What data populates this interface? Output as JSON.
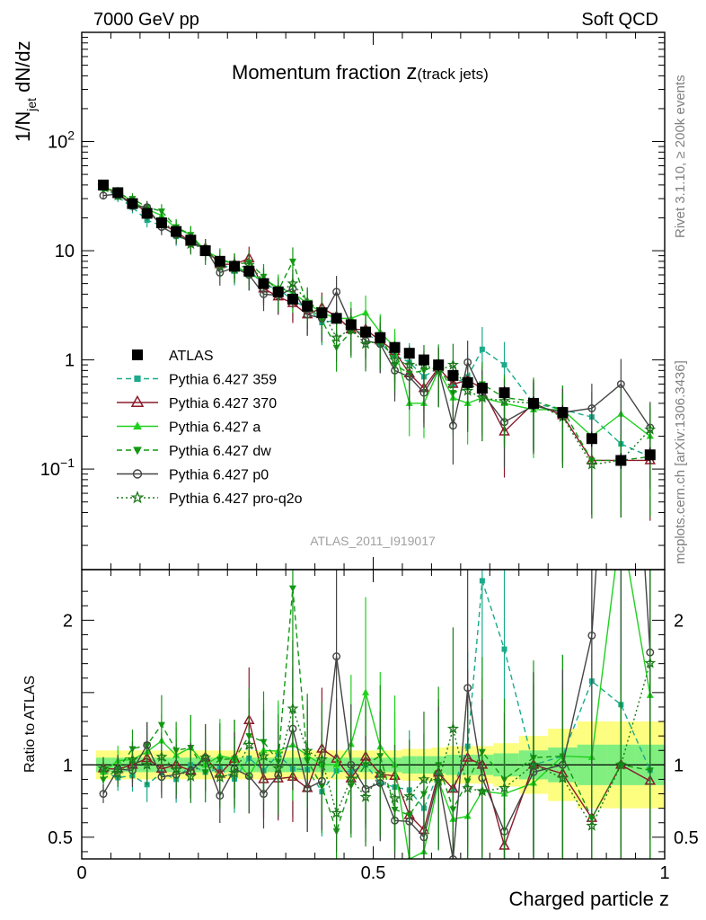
{
  "header": {
    "left": "7000 GeV pp",
    "right": "Soft QCD"
  },
  "side_labels": {
    "top": "Rivet 3.1.10, ≥ 200k events",
    "bottom": "mcplots.cern.ch [arXiv:1306.3436]"
  },
  "analysis_id": "ATLAS_2011_I919017",
  "colors": {
    "ATLAS": "#000000",
    "p359": "#1aab8a",
    "p370": "#8b1a2b",
    "pa": "#1fd11f",
    "pdw": "#119911",
    "pp0": "#444444",
    "pq2o": "#1b7a1b",
    "band_inner": "#80ef80",
    "band_outer": "#fdfd80"
  },
  "chart_data": [
    {
      "type": "scatter",
      "title_main": "Momentum fraction ",
      "title_var": "z",
      "title_sub": "(track jets)",
      "ylabel": "1/N",
      "ylabel_sub": "jet",
      "ylabel_tail": " dN/dz",
      "yscale": "log",
      "ylim": [
        0.012,
        1000
      ],
      "xlim": [
        0,
        1
      ],
      "yticks": [
        {
          "v": 100,
          "label": "10",
          "exp": "2"
        },
        {
          "v": 10,
          "label": "10",
          "exp": ""
        },
        {
          "v": 1,
          "label": "1",
          "exp": ""
        },
        {
          "v": 0.1,
          "label": "10",
          "exp": "−1"
        }
      ],
      "x": [
        0.037,
        0.062,
        0.087,
        0.112,
        0.137,
        0.162,
        0.187,
        0.212,
        0.237,
        0.262,
        0.287,
        0.312,
        0.337,
        0.362,
        0.387,
        0.412,
        0.437,
        0.462,
        0.487,
        0.512,
        0.537,
        0.562,
        0.587,
        0.612,
        0.637,
        0.662,
        0.687,
        0.725,
        0.775,
        0.825,
        0.875,
        0.925,
        0.975
      ],
      "series": [
        {
          "name": "ATLAS",
          "key": "ATLAS",
          "marker": "square",
          "dash": "none",
          "fill": true,
          "values": [
            40,
            34,
            27,
            22,
            18,
            15,
            12.5,
            10,
            8,
            7.2,
            6.5,
            5,
            4.2,
            3.6,
            3.1,
            2.7,
            2.4,
            2.1,
            1.8,
            1.6,
            1.3,
            1.15,
            1.0,
            0.9,
            0.72,
            0.62,
            0.55,
            0.5,
            0.4,
            0.33,
            0.19,
            0.12,
            0.135
          ]
        },
        {
          "name": "Pythia 6.427 359",
          "key": "p359",
          "marker": "square-small",
          "dash": "6,4",
          "fill": true,
          "values": [
            38,
            31,
            25,
            19,
            17,
            13.5,
            12.5,
            9.5,
            7.8,
            6.5,
            6.8,
            4.8,
            4.5,
            3.5,
            3.0,
            2.2,
            2.3,
            2.0,
            1.8,
            1.4,
            1.1,
            0.95,
            0.7,
            0.85,
            0.6,
            0.7,
            1.25,
            0.9,
            0.4,
            0.35,
            0.3,
            0.17,
            0.13
          ]
        },
        {
          "name": "Pythia 6.427 370",
          "key": "p370",
          "marker": "triangle-open",
          "dash": "none",
          "fill": false,
          "values": [
            39,
            33,
            27,
            23,
            17.5,
            15,
            12,
            10.5,
            7.5,
            7.5,
            8.5,
            4.5,
            3.8,
            3.3,
            2.6,
            3.0,
            2.5,
            1.9,
            1.9,
            1.5,
            1.2,
            0.75,
            0.55,
            0.85,
            0.6,
            0.65,
            0.55,
            0.22,
            0.4,
            0.31,
            0.12,
            0.12,
            0.12
          ]
        },
        {
          "name": "Pythia 6.427 a",
          "key": "pa",
          "marker": "triangle",
          "dash": "none",
          "fill": true,
          "values": [
            38,
            35,
            28,
            24,
            21,
            16,
            14,
            10,
            8.5,
            7.5,
            6.0,
            5.5,
            4.6,
            4.1,
            3.3,
            2.7,
            2.4,
            2.4,
            2.7,
            1.8,
            1.3,
            0.4,
            0.4,
            0.8,
            0.45,
            0.4,
            0.45,
            0.4,
            0.35,
            0.35,
            0.2,
            0.32,
            0.2
          ]
        },
        {
          "name": "Pythia 6.427 dw",
          "key": "pdw",
          "marker": "triangle-down",
          "dash": "6,4",
          "fill": true,
          "values": [
            36,
            33,
            30,
            25,
            23,
            16.5,
            14,
            9.5,
            8.3,
            7.5,
            7.8,
            5.8,
            4.3,
            8.0,
            3.2,
            2.3,
            1.3,
            1.8,
            1.8,
            1.7,
            0.9,
            0.75,
            0.8,
            0.9,
            0.5,
            0.55,
            0.6,
            0.45,
            0.42,
            0.35,
            0.12,
            0.12,
            0.13
          ]
        },
        {
          "name": "Pythia 6.427 p0",
          "key": "pp0",
          "marker": "circle-open",
          "dash": "none",
          "fill": false,
          "values": [
            32,
            33,
            26,
            25,
            16.5,
            14,
            12,
            10.5,
            6.3,
            7.0,
            6.0,
            4.0,
            3.9,
            4.5,
            2.6,
            2.4,
            4.2,
            2.1,
            1.5,
            1.4,
            0.8,
            0.7,
            0.5,
            0.82,
            0.25,
            0.95,
            0.5,
            0.27,
            0.38,
            0.33,
            0.36,
            0.6,
            0.24
          ]
        },
        {
          "name": "Pythia 6.427 pro-q2o",
          "key": "pq2o",
          "marker": "star",
          "dash": "2,3",
          "fill": false,
          "values": [
            39,
            32,
            28,
            22,
            19,
            14.5,
            11.5,
            10.5,
            7.3,
            6.8,
            7.4,
            5.3,
            4.1,
            5.0,
            3.4,
            2.8,
            1.6,
            1.9,
            1.4,
            1.5,
            1.0,
            0.9,
            0.9,
            0.8,
            0.9,
            0.52,
            0.45,
            0.42,
            0.4,
            0.3,
            0.11,
            0.12,
            0.23
          ]
        }
      ]
    },
    {
      "type": "scatter",
      "ylabel": "Ratio to ATLAS",
      "xlabel": "Charged particle z",
      "ylim": [
        0.35,
        2.35
      ],
      "xlim": [
        0,
        1
      ],
      "yticks": [
        {
          "v": 0.5,
          "label": "0.5"
        },
        {
          "v": 1,
          "label": "1"
        },
        {
          "v": 2,
          "label": "2"
        }
      ],
      "xticks": [
        {
          "v": 0,
          "label": "0"
        },
        {
          "v": 0.5,
          "label": "0.5"
        },
        {
          "v": 1,
          "label": "1"
        }
      ],
      "band_inner": [
        0.05,
        0.05,
        0.05,
        0.05,
        0.05,
        0.05,
        0.05,
        0.05,
        0.05,
        0.05,
        0.05,
        0.05,
        0.05,
        0.05,
        0.05,
        0.05,
        0.05,
        0.05,
        0.05,
        0.05,
        0.05,
        0.06,
        0.06,
        0.06,
        0.07,
        0.07,
        0.07,
        0.08,
        0.1,
        0.12,
        0.14,
        0.14,
        0.14
      ],
      "band_outer": [
        0.1,
        0.1,
        0.1,
        0.1,
        0.1,
        0.1,
        0.1,
        0.1,
        0.1,
        0.1,
        0.1,
        0.1,
        0.1,
        0.1,
        0.1,
        0.1,
        0.1,
        0.1,
        0.1,
        0.1,
        0.1,
        0.11,
        0.11,
        0.12,
        0.13,
        0.13,
        0.13,
        0.15,
        0.2,
        0.25,
        0.3,
        0.3,
        0.3
      ]
    }
  ]
}
